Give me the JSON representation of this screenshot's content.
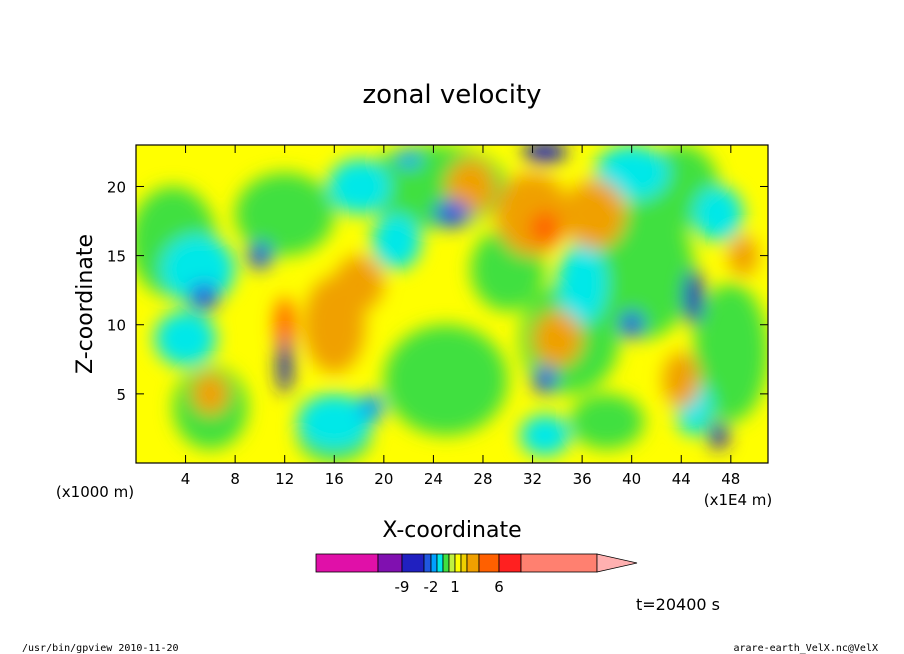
{
  "chart_data": {
    "type": "heatmap",
    "title": "zonal velocity",
    "xlabel": "X-coordinate",
    "ylabel": "Z-coordinate",
    "x_unit_label": "(x1E4 m)",
    "y_unit_label": "(x1000 m)",
    "xlim": [
      0,
      51
    ],
    "ylim": [
      0,
      23
    ],
    "x_ticks": [
      4,
      8,
      12,
      16,
      20,
      24,
      28,
      32,
      36,
      40,
      44,
      48
    ],
    "y_ticks": [
      5,
      10,
      15,
      20
    ],
    "x_tick_labels": [
      "4",
      "8",
      "12",
      "16",
      "20",
      "24",
      "28",
      "32",
      "36",
      "40",
      "44",
      "48"
    ],
    "y_tick_labels": [
      "5",
      "10",
      "15",
      "20"
    ],
    "grid": false,
    "colorbar": {
      "orientation": "horizontal",
      "placement": "bottom",
      "extend": "max",
      "colors": [
        "#e010a8",
        "#8010b0",
        "#2020c0",
        "#2058e0",
        "#00a0ff",
        "#00e8e8",
        "#40e040",
        "#c0f040",
        "#ffff00",
        "#f0d000",
        "#f0a000",
        "#ff6000",
        "#ff2020",
        "#ff8070"
      ],
      "extend_color": "#ffb0b0",
      "tick_labels": [
        {
          "label": "-9",
          "position": -9
        },
        {
          "label": "-2",
          "position": -2
        },
        {
          "label": "1",
          "position": 1
        },
        {
          "label": "6",
          "position": 6
        }
      ]
    },
    "annotation_time": "t=20400 s"
  },
  "footer": {
    "left": "/usr/bin/gpview   2010-11-20",
    "right": "arare-earth_VelX.nc@VelX"
  }
}
